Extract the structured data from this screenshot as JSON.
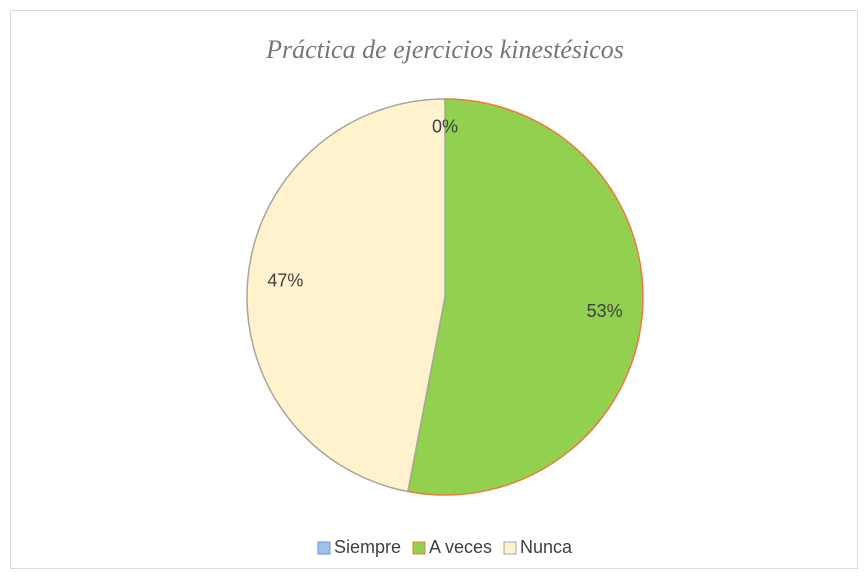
{
  "chart_data": {
    "type": "pie",
    "title": "Práctica de ejercicios kinestésicos",
    "categories": [
      "Siempre",
      "A veces",
      "Nunca"
    ],
    "values": [
      0,
      53,
      47
    ],
    "value_labels": [
      "0%",
      "53%",
      "47%"
    ],
    "colors": [
      "#9dc3e6",
      "#92d050",
      "#fff2cc"
    ],
    "edge_colors": [
      "#5b9bd5",
      "#ed7d31",
      "#a5a5a5"
    ],
    "legend": "bottom"
  }
}
